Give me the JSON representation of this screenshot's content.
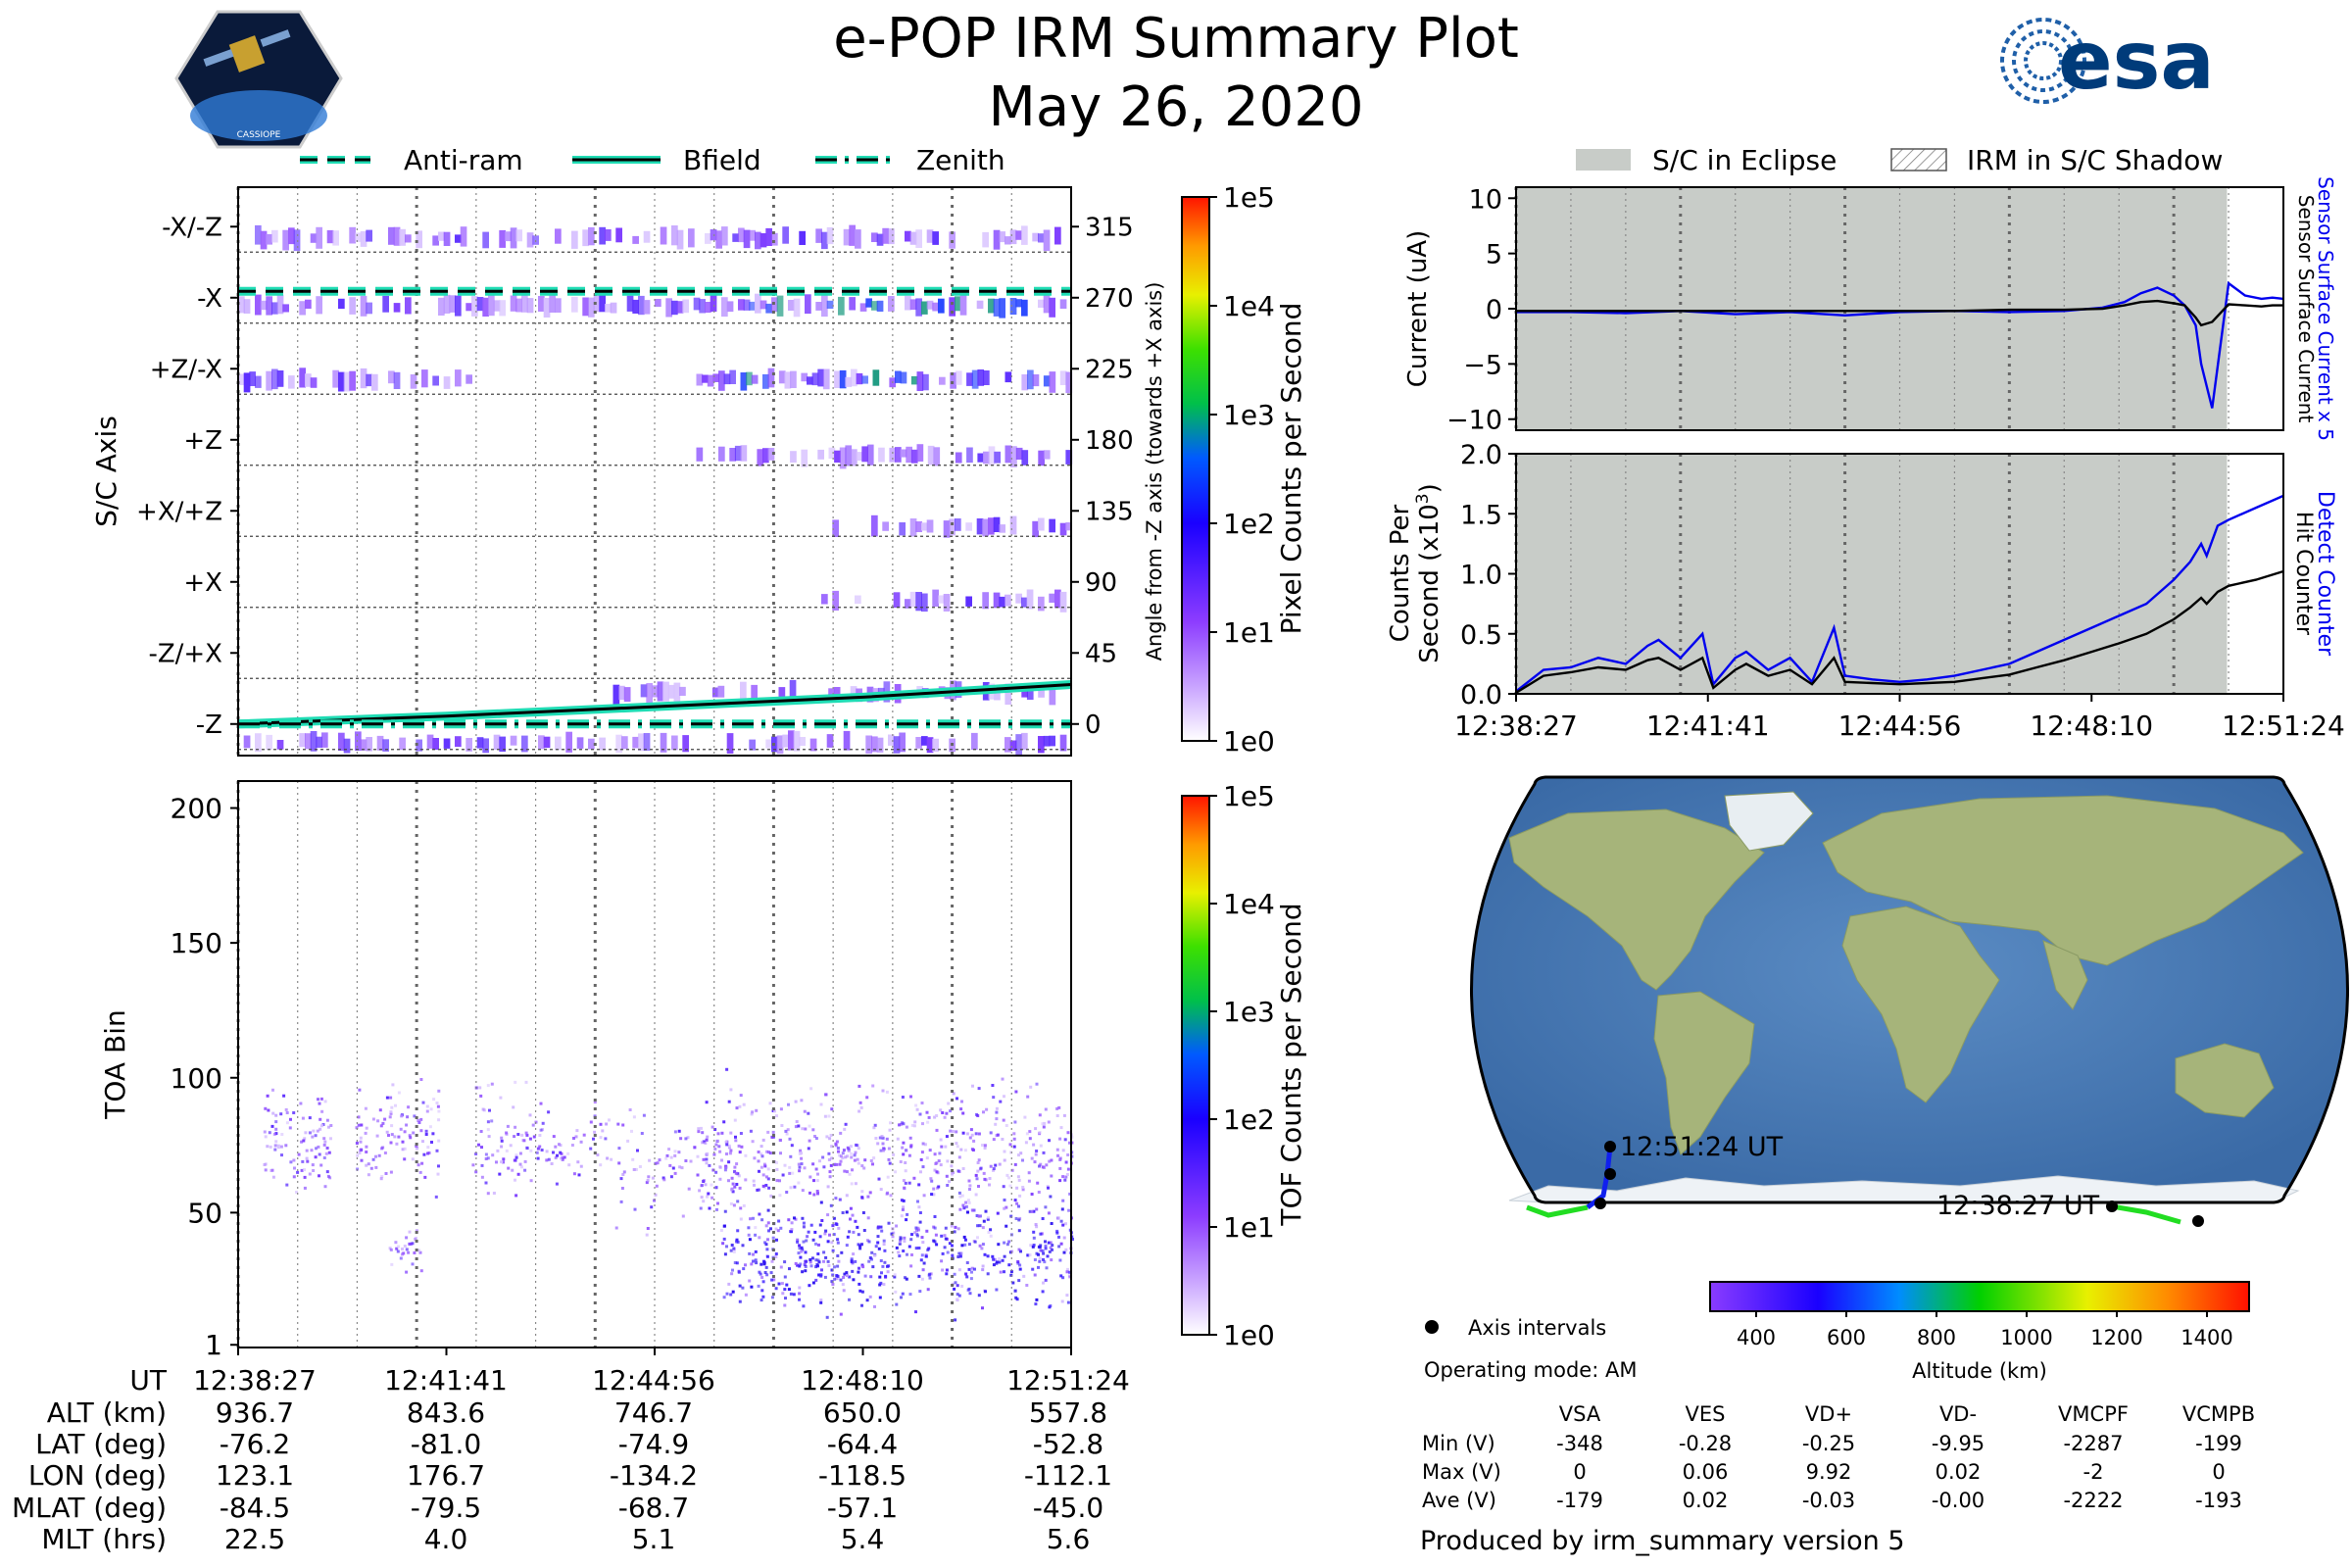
{
  "header": {
    "title": "e-POP IRM Summary Plot",
    "date": "May 26, 2020",
    "logo_text": "CASSIOPE",
    "agency_logo_text": "esa"
  },
  "top_legend": {
    "items": [
      {
        "label": "Anti-ram",
        "style": "dashed"
      },
      {
        "label": "Bfield",
        "style": "solid"
      },
      {
        "label": "Zenith",
        "style": "dashdot"
      }
    ]
  },
  "right_legend": {
    "eclipse": "S/C in Eclipse",
    "shadow": "IRM in S/C Shadow"
  },
  "colors": {
    "line_accent": "#1fdcb4",
    "eclipse": "#c8ccc8",
    "blue": "#0000ee",
    "purple": "#7f3fff"
  },
  "time_ticks": [
    "12:38:27",
    "12:41:41",
    "12:44:56",
    "12:48:10",
    "12:51:24"
  ],
  "chart_data": [
    {
      "type": "heatmap",
      "id": "sc-axis",
      "ylabel_left": "S/C Axis",
      "ylabel_right": "Angle from -Z axis (towards +X axis)",
      "left_ticks": [
        "-X/-Z",
        "-X",
        "+Z/-X",
        "+Z",
        "+X/+Z",
        "+X",
        "-Z/+X",
        "-Z"
      ],
      "angle_ticks": [
        315,
        270,
        225,
        180,
        135,
        90,
        45,
        0
      ],
      "ylim": [
        -20,
        340
      ],
      "colorbar": {
        "label": "Pixel Counts per Second",
        "ticks": [
          "1e0",
          "1e1",
          "1e2",
          "1e3",
          "1e4",
          "1e5"
        ]
      },
      "series": [
        {
          "name": "Anti-ram",
          "values": [
            274,
            274,
            274,
            274,
            274
          ]
        },
        {
          "name": "Bfield",
          "values": [
            0,
            5,
            11,
            17,
            25
          ]
        },
        {
          "name": "Zenith",
          "values": [
            0,
            0,
            0,
            0,
            0
          ]
        }
      ]
    },
    {
      "type": "heatmap",
      "id": "toa",
      "ylabel": "TOA Bin",
      "yticks": [
        1,
        50,
        100,
        150,
        200
      ],
      "ylim": [
        0,
        210
      ],
      "colorbar": {
        "label": "TOF Counts per Second",
        "ticks": [
          "1e0",
          "1e1",
          "1e2",
          "1e3",
          "1e4",
          "1e5"
        ]
      }
    },
    {
      "type": "line",
      "id": "current",
      "ylabel": "Current (uA)",
      "yticks": [
        10,
        5,
        0,
        -5,
        -10
      ],
      "ylim": [
        -11,
        11
      ],
      "right_labels": [
        "Sensor Surface Current x 5",
        "Sensor Surface Current"
      ],
      "x_minutes": [
        0,
        1,
        2,
        3,
        4,
        5,
        6,
        7,
        8,
        9,
        10,
        10.7,
        11.1,
        11.4,
        11.7,
        12,
        12.2,
        12.4,
        12.5,
        12.7,
        13,
        13.3,
        13.6,
        13.8,
        14
      ],
      "series": [
        {
          "name": "Sensor Surface Current x 5",
          "values": [
            -0.3,
            -0.3,
            -0.4,
            -0.2,
            -0.5,
            -0.3,
            -0.6,
            -0.3,
            -0.2,
            -0.3,
            -0.2,
            0.1,
            0.6,
            1.4,
            1.9,
            1.2,
            0.3,
            -1.5,
            -5,
            -9,
            2.3,
            1.2,
            0.9,
            1.0,
            0.9
          ]
        },
        {
          "name": "Sensor Surface Current",
          "values": [
            -0.2,
            -0.2,
            -0.2,
            -0.2,
            -0.2,
            -0.2,
            -0.2,
            -0.2,
            -0.2,
            -0.1,
            -0.1,
            0,
            0.3,
            0.6,
            0.7,
            0.5,
            0.3,
            -0.8,
            -1.5,
            -1.2,
            0.4,
            0.3,
            0.2,
            0.3,
            0.3
          ]
        }
      ],
      "eclipse_until_minute": 12.97
    },
    {
      "type": "line",
      "id": "counts",
      "ylabel": "Counts Per Second (x10³)",
      "yticks": [
        "2.0",
        "1.5",
        "1.0",
        "0.5",
        "0.0"
      ],
      "ylim": [
        0,
        2
      ],
      "right_labels": [
        "Detect Counter",
        "Hit Counter"
      ],
      "x_minutes": [
        0,
        0.5,
        1,
        1.5,
        2,
        2.4,
        2.6,
        3,
        3.4,
        3.6,
        4,
        4.2,
        4.6,
        5,
        5.4,
        5.8,
        6,
        6.5,
        7,
        7.5,
        8,
        8.5,
        9,
        9.5,
        10,
        10.5,
        11,
        11.5,
        12,
        12.3,
        12.5,
        12.6,
        12.8,
        13,
        13.5,
        14
      ],
      "series": [
        {
          "name": "Detect Counter",
          "values": [
            0.02,
            0.2,
            0.22,
            0.3,
            0.25,
            0.4,
            0.45,
            0.3,
            0.5,
            0.08,
            0.3,
            0.35,
            0.2,
            0.3,
            0.1,
            0.55,
            0.15,
            0.12,
            0.1,
            0.12,
            0.15,
            0.2,
            0.25,
            0.35,
            0.45,
            0.55,
            0.65,
            0.75,
            0.95,
            1.1,
            1.25,
            1.15,
            1.4,
            1.45,
            1.55,
            1.65
          ]
        },
        {
          "name": "Hit Counter",
          "values": [
            0.01,
            0.15,
            0.18,
            0.22,
            0.2,
            0.28,
            0.3,
            0.2,
            0.3,
            0.05,
            0.2,
            0.25,
            0.15,
            0.2,
            0.08,
            0.3,
            0.1,
            0.09,
            0.08,
            0.09,
            0.1,
            0.13,
            0.16,
            0.22,
            0.28,
            0.35,
            0.42,
            0.5,
            0.62,
            0.72,
            0.8,
            0.75,
            0.85,
            0.9,
            0.95,
            1.02
          ]
        }
      ],
      "eclipse_until_minute": 12.97
    }
  ],
  "map": {
    "start_label": "12:38:27 UT",
    "end_label": "12:51:24 UT",
    "legend_label": "Axis intervals",
    "altitude_label": "Altitude (km)",
    "altitude_ticks": [
      "400",
      "600",
      "800",
      "1000",
      "1200",
      "1400"
    ]
  },
  "parameters": {
    "row_labels": [
      "UT",
      "ALT (km)",
      "LAT (deg)",
      "LON (deg)",
      "MLAT (deg)",
      "MLT (hrs)"
    ],
    "columns": [
      [
        "12:38:27",
        "936.7",
        "-76.2",
        "123.1",
        "-84.5",
        "22.5"
      ],
      [
        "12:41:41",
        "843.6",
        "-81.0",
        "176.7",
        "-79.5",
        "4.0"
      ],
      [
        "12:44:56",
        "746.7",
        "-74.9",
        "-134.2",
        "-68.7",
        "5.1"
      ],
      [
        "12:48:10",
        "650.0",
        "-64.4",
        "-118.5",
        "-57.1",
        "5.4"
      ],
      [
        "12:51:24",
        "557.8",
        "-52.8",
        "-112.1",
        "-45.0",
        "5.6"
      ]
    ]
  },
  "operating_mode": "Operating mode: AM",
  "voltage_table": {
    "headers": [
      "VSA",
      "VES",
      "VD+",
      "VD-",
      "VMCPF",
      "VCMPB"
    ],
    "rows": [
      {
        "label": "Min (V)",
        "values": [
          "-348",
          "-0.28",
          "-0.25",
          "-9.95",
          "-2287",
          "-199"
        ]
      },
      {
        "label": "Max (V)",
        "values": [
          "0",
          "0.06",
          "9.92",
          "0.02",
          "-2",
          "0"
        ]
      },
      {
        "label": "Ave (V)",
        "values": [
          "-179",
          "0.02",
          "-0.03",
          "-0.00",
          "-2222",
          "-193"
        ]
      }
    ]
  },
  "footer": "Produced by irm_summary version 5"
}
